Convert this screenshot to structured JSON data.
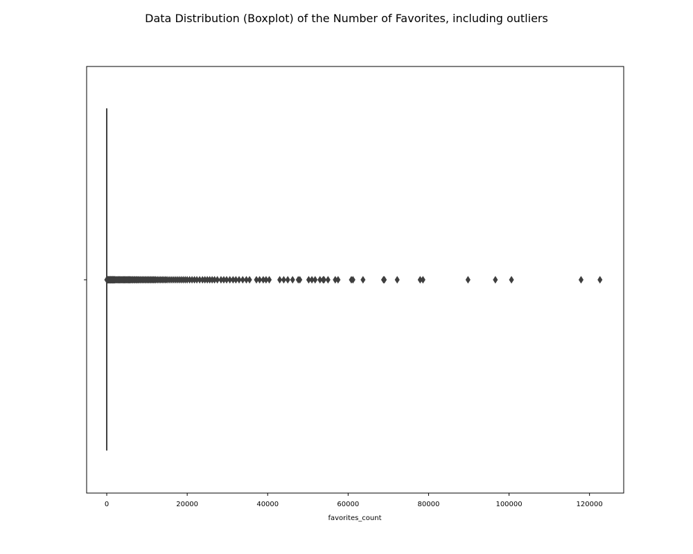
{
  "chart_data": {
    "type": "boxplot",
    "title": "Data Distribution (Boxplot) of the  Number of Favorites, including outliers",
    "xlabel": "favorites_count",
    "ylabel": "",
    "orientation": "horizontal",
    "xlim": [
      -5000,
      128500
    ],
    "xticks": [
      0,
      20000,
      40000,
      60000,
      80000,
      100000,
      120000
    ],
    "xtick_labels": [
      "0",
      "20000",
      "40000",
      "60000",
      "80000",
      "100000",
      "120000"
    ],
    "grid": false,
    "legend": "none",
    "box": {
      "whislo": 0,
      "q1": 0,
      "median": 0,
      "q3": 0,
      "whishi": 0
    },
    "outliers": [
      0,
      80,
      160,
      240,
      320,
      400,
      500,
      600,
      700,
      800,
      900,
      1000,
      1100,
      1200,
      1300,
      1400,
      1500,
      1600,
      1700,
      1800,
      1900,
      2000,
      2200,
      2400,
      2600,
      2800,
      3000,
      3200,
      3400,
      3600,
      3800,
      4000,
      4200,
      4400,
      4600,
      4800,
      5000,
      5200,
      5400,
      5600,
      5800,
      6000,
      6250,
      6500,
      6750,
      7000,
      7250,
      7500,
      7750,
      8000,
      8300,
      8600,
      8900,
      9200,
      9500,
      9800,
      10100,
      10400,
      10700,
      11000,
      11300,
      11600,
      11900,
      12200,
      12600,
      13000,
      13400,
      13800,
      14200,
      14600,
      15000,
      15500,
      16000,
      16500,
      17000,
      17500,
      18000,
      18500,
      19000,
      19500,
      20000,
      20600,
      21200,
      21800,
      22400,
      23100,
      23800,
      24400,
      25000,
      25600,
      26200,
      26800,
      27500,
      28400,
      29100,
      29800,
      30600,
      31400,
      32100,
      32900,
      33800,
      34700,
      35500,
      37200,
      38000,
      38900,
      39600,
      40400,
      43000,
      44000,
      45000,
      46200,
      47600,
      48000,
      50200,
      51000,
      51800,
      53000,
      53800,
      54000,
      55000,
      56800,
      57500,
      60800,
      61200,
      63700,
      68800,
      69000,
      72200,
      77900,
      78600,
      89800,
      96600,
      100600,
      117900,
      122600
    ],
    "colors": {
      "box": "#3f3f3f",
      "outlier_marker": "#3f3f3f",
      "axes": "#000000"
    }
  }
}
